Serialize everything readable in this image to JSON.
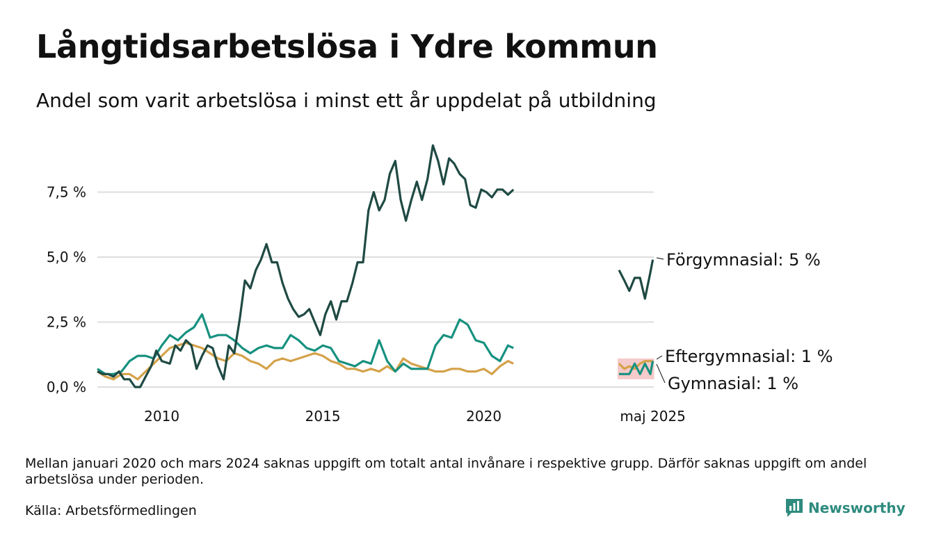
{
  "title": "Långtidsarbetslösa i Ydre kommun",
  "subtitle": "Andel som varit arbetslösa i minst ett år uppdelat på utbildning",
  "note": "Mellan januari 2020 och mars 2024 saknas uppgift om totalt antal invånare i respektive grupp. Därför saknas uppgift om andel arbetslösa under perioden.",
  "source": "Källa: Arbetsförmedlingen",
  "brand": "Newsworthy",
  "colors": {
    "forgymnasial": "#1f4a43",
    "eftergymnasial": "#16917f",
    "gymnasial": "#d4a24a",
    "uncertainty": "#f2b8b8",
    "grid": "#dddddd",
    "brand": "#2e8b7e"
  },
  "chart_data": {
    "type": "line",
    "unit": "%",
    "ylim": [
      0,
      10
    ],
    "yticks": [
      0,
      2.5,
      5,
      7.5
    ],
    "ytick_labels": [
      "0,0 %",
      "2,5 %",
      "5,0 %",
      "7,5 %"
    ],
    "xticks": [
      2010,
      2015,
      2020,
      2025.33
    ],
    "xtick_labels": [
      "2010",
      "2015",
      "2020",
      "maj 2025"
    ],
    "grid": "horizontal",
    "legend": "end-of-line labels",
    "series": [
      {
        "name": "Förgymnasial",
        "end_label": "Förgymnasial: 5 %",
        "color_key": "forgymnasial",
        "x": [
          2008.0,
          2008.17,
          2008.33,
          2008.5,
          2008.67,
          2008.83,
          2009.0,
          2009.17,
          2009.33,
          2009.5,
          2009.67,
          2009.83,
          2010.0,
          2010.25,
          2010.42,
          2010.58,
          2010.75,
          2010.92,
          2011.08,
          2011.25,
          2011.42,
          2011.58,
          2011.75,
          2011.92,
          2012.08,
          2012.25,
          2012.42,
          2012.58,
          2012.75,
          2012.92,
          2013.08,
          2013.25,
          2013.42,
          2013.58,
          2013.75,
          2013.92,
          2014.08,
          2014.25,
          2014.42,
          2014.58,
          2014.75,
          2014.92,
          2015.08,
          2015.25,
          2015.42,
          2015.58,
          2015.75,
          2015.92,
          2016.08,
          2016.25,
          2016.42,
          2016.58,
          2016.75,
          2016.92,
          2017.08,
          2017.25,
          2017.42,
          2017.58,
          2017.75,
          2017.92,
          2018.08,
          2018.25,
          2018.42,
          2018.58,
          2018.75,
          2018.92,
          2019.08,
          2019.25,
          2019.42,
          2019.58,
          2019.75,
          2019.92,
          2020.08,
          2020.25,
          2020.42,
          2020.58,
          2020.75,
          2020.92
        ],
        "y": [
          0.6,
          0.5,
          0.5,
          0.4,
          0.6,
          0.3,
          0.3,
          0.0,
          0.0,
          0.4,
          0.8,
          1.4,
          1.0,
          0.9,
          1.6,
          1.4,
          1.8,
          1.6,
          0.7,
          1.2,
          1.6,
          1.5,
          0.8,
          0.3,
          1.6,
          1.3,
          2.6,
          4.1,
          3.8,
          4.5,
          4.9,
          5.5,
          4.8,
          4.8,
          4.0,
          3.4,
          3.0,
          2.7,
          2.8,
          3.0,
          2.5,
          2.0,
          2.8,
          3.3,
          2.6,
          3.3,
          3.3,
          4.0,
          4.8,
          4.8,
          6.8,
          7.5,
          6.8,
          7.2,
          8.2,
          8.7,
          7.2,
          6.4,
          7.2,
          7.9,
          7.2,
          8.0,
          9.3,
          8.7,
          7.8,
          8.8,
          8.6,
          8.2,
          8.0,
          7.0,
          6.9,
          7.6,
          7.5,
          7.3,
          7.6,
          7.6,
          7.4,
          7.6
        ],
        "recent_x": [
          2024.25,
          2024.42,
          2024.58,
          2024.75,
          2024.92,
          2025.08,
          2025.25,
          2025.33
        ],
        "recent_y": [
          4.5,
          4.1,
          3.7,
          4.2,
          4.2,
          3.4,
          4.4,
          4.9
        ]
      },
      {
        "name": "Eftergymnasial",
        "end_label": "Eftergymnasial: 1 %",
        "color_key": "eftergymnasial",
        "x": [
          2008.0,
          2008.25,
          2008.5,
          2008.75,
          2009.0,
          2009.25,
          2009.5,
          2009.75,
          2010.0,
          2010.25,
          2010.5,
          2010.75,
          2011.0,
          2011.25,
          2011.5,
          2011.75,
          2012.0,
          2012.25,
          2012.5,
          2012.75,
          2013.0,
          2013.25,
          2013.5,
          2013.75,
          2014.0,
          2014.25,
          2014.5,
          2014.75,
          2015.0,
          2015.25,
          2015.5,
          2015.75,
          2016.0,
          2016.25,
          2016.5,
          2016.75,
          2017.0,
          2017.25,
          2017.5,
          2017.75,
          2018.0,
          2018.25,
          2018.5,
          2018.75,
          2019.0,
          2019.25,
          2019.5,
          2019.75,
          2020.0,
          2020.25,
          2020.5,
          2020.75,
          2020.92
        ],
        "y": [
          0.7,
          0.5,
          0.5,
          0.6,
          1.0,
          1.2,
          1.2,
          1.1,
          1.6,
          2.0,
          1.8,
          2.1,
          2.3,
          2.8,
          1.9,
          2.0,
          2.0,
          1.8,
          1.5,
          1.3,
          1.5,
          1.6,
          1.5,
          1.5,
          2.0,
          1.8,
          1.5,
          1.4,
          1.6,
          1.5,
          1.0,
          0.9,
          0.8,
          1.0,
          0.9,
          1.8,
          1.0,
          0.6,
          0.9,
          0.7,
          0.7,
          0.7,
          1.6,
          2.0,
          1.9,
          2.6,
          2.4,
          1.8,
          1.7,
          1.2,
          1.0,
          1.6,
          1.5
        ],
        "recent_x": [
          2024.25,
          2024.42,
          2024.58,
          2024.75,
          2024.92,
          2025.08,
          2025.25,
          2025.33
        ],
        "recent_y": [
          0.5,
          0.5,
          0.5,
          0.9,
          0.5,
          0.9,
          0.5,
          1.0
        ]
      },
      {
        "name": "Gymnasial",
        "end_label": "Gymnasial: 1 %",
        "color_key": "gymnasial",
        "x": [
          2008.0,
          2008.25,
          2008.5,
          2008.75,
          2009.0,
          2009.25,
          2009.5,
          2009.75,
          2010.0,
          2010.25,
          2010.5,
          2010.75,
          2011.0,
          2011.25,
          2011.5,
          2011.75,
          2012.0,
          2012.25,
          2012.5,
          2012.75,
          2013.0,
          2013.25,
          2013.5,
          2013.75,
          2014.0,
          2014.25,
          2014.5,
          2014.75,
          2015.0,
          2015.25,
          2015.5,
          2015.75,
          2016.0,
          2016.25,
          2016.5,
          2016.75,
          2017.0,
          2017.25,
          2017.5,
          2017.75,
          2018.0,
          2018.25,
          2018.5,
          2018.75,
          2019.0,
          2019.25,
          2019.5,
          2019.75,
          2020.0,
          2020.25,
          2020.5,
          2020.75,
          2020.92
        ],
        "y": [
          0.6,
          0.4,
          0.3,
          0.5,
          0.5,
          0.3,
          0.6,
          0.9,
          1.2,
          1.5,
          1.6,
          1.7,
          1.6,
          1.5,
          1.3,
          1.1,
          1.0,
          1.3,
          1.2,
          1.0,
          0.9,
          0.7,
          1.0,
          1.1,
          1.0,
          1.1,
          1.2,
          1.3,
          1.2,
          1.0,
          0.9,
          0.7,
          0.7,
          0.6,
          0.7,
          0.6,
          0.8,
          0.6,
          1.1,
          0.9,
          0.8,
          0.7,
          0.6,
          0.6,
          0.7,
          0.7,
          0.6,
          0.6,
          0.7,
          0.5,
          0.8,
          1.0,
          0.9
        ],
        "recent_x": [
          2024.25,
          2024.42,
          2024.58,
          2024.75,
          2024.92,
          2025.08,
          2025.25,
          2025.33
        ],
        "recent_y": [
          0.9,
          0.7,
          0.8,
          0.7,
          0.9,
          1.0,
          1.0,
          1.0
        ]
      }
    ]
  }
}
